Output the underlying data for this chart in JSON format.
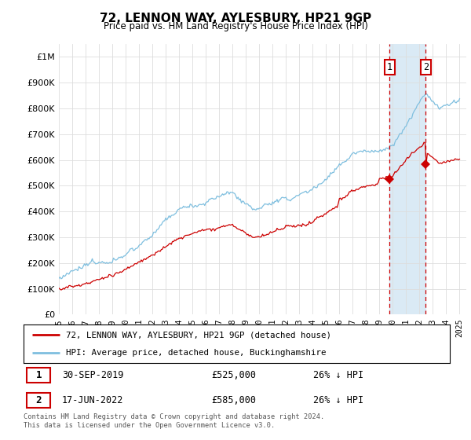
{
  "title": "72, LENNON WAY, AYLESBURY, HP21 9GP",
  "subtitle": "Price paid vs. HM Land Registry's House Price Index (HPI)",
  "ylabel_ticks": [
    "£0",
    "£100K",
    "£200K",
    "£300K",
    "£400K",
    "£500K",
    "£600K",
    "£700K",
    "£800K",
    "£900K",
    "£1M"
  ],
  "ytick_values": [
    0,
    100000,
    200000,
    300000,
    400000,
    500000,
    600000,
    700000,
    800000,
    900000,
    1000000
  ],
  "ylim": [
    0,
    1050000
  ],
  "xlim_start": 1995.0,
  "xlim_end": 2025.5,
  "hpi_color": "#7fbfdf",
  "price_color": "#cc0000",
  "shade_color": "#daeaf5",
  "marker1_date": 2019.75,
  "marker1_price": 525000,
  "marker1_label": "30-SEP-2019",
  "marker1_text": "£525,000",
  "marker1_pct": "26% ↓ HPI",
  "marker2_date": 2022.46,
  "marker2_price": 585000,
  "marker2_label": "17-JUN-2022",
  "marker2_text": "£585,000",
  "marker2_pct": "26% ↓ HPI",
  "legend_line1": "72, LENNON WAY, AYLESBURY, HP21 9GP (detached house)",
  "legend_line2": "HPI: Average price, detached house, Buckinghamshire",
  "footnote": "Contains HM Land Registry data © Crown copyright and database right 2024.\nThis data is licensed under the Open Government Licence v3.0.",
  "background_color": "#ffffff",
  "grid_color": "#dddddd"
}
